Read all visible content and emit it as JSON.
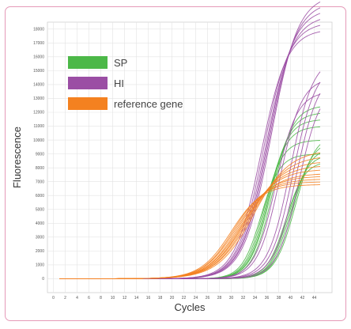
{
  "chart_data": {
    "type": "line",
    "xlabel": "Cycles",
    "ylabel": "Fluorescence",
    "xlim": [
      -1,
      47
    ],
    "ylim": [
      -1000,
      18500
    ],
    "x_ticks": [
      0,
      2,
      4,
      6,
      8,
      10,
      12,
      14,
      16,
      18,
      20,
      22,
      24,
      26,
      28,
      30,
      32,
      34,
      36,
      38,
      40,
      42,
      44
    ],
    "y_ticks": [
      0,
      1000,
      2000,
      3000,
      4000,
      5000,
      6000,
      7000,
      8000,
      9000,
      10000,
      11000,
      12000,
      13000,
      14000,
      15000,
      16000,
      17000,
      18000
    ],
    "grid": true,
    "legend_position": "top-left",
    "series": [
      {
        "name": "SP",
        "color": "#4cb848",
        "x_start": 1,
        "x_end": 45,
        "curves": [
          {
            "plateau": 9000,
            "midpoint": 35.0,
            "slope": 1.6
          },
          {
            "plateau": 10000,
            "midpoint": 35.5,
            "slope": 1.6
          },
          {
            "plateau": 11000,
            "midpoint": 36.0,
            "slope": 1.65
          },
          {
            "plateau": 11500,
            "midpoint": 36.3,
            "slope": 1.65
          },
          {
            "plateau": 12000,
            "midpoint": 36.6,
            "slope": 1.7
          },
          {
            "plateau": 12500,
            "midpoint": 37.0,
            "slope": 1.7
          },
          {
            "plateau": 8500,
            "midpoint": 39.2,
            "slope": 1.6
          },
          {
            "plateau": 9000,
            "midpoint": 39.6,
            "slope": 1.6
          },
          {
            "plateau": 9500,
            "midpoint": 40.0,
            "slope": 1.65
          },
          {
            "plateau": 10000,
            "midpoint": 40.4,
            "slope": 1.65
          },
          {
            "plateau": 10500,
            "midpoint": 40.8,
            "slope": 1.7
          }
        ]
      },
      {
        "name": "HI",
        "color": "#9b4ea4",
        "x_start": 1,
        "x_end": 45,
        "curves": [
          {
            "plateau": 18000,
            "midpoint": 35.0,
            "slope": 2.2
          },
          {
            "plateau": 18500,
            "midpoint": 35.4,
            "slope": 2.2
          },
          {
            "plateau": 19000,
            "midpoint": 35.8,
            "slope": 2.25
          },
          {
            "plateau": 19500,
            "midpoint": 36.1,
            "slope": 2.25
          },
          {
            "plateau": 20000,
            "midpoint": 36.4,
            "slope": 2.3
          },
          {
            "plateau": 20500,
            "midpoint": 36.7,
            "slope": 2.3
          },
          {
            "plateau": 13500,
            "midpoint": 37.5,
            "slope": 1.8
          },
          {
            "plateau": 14500,
            "midpoint": 38.2,
            "slope": 1.85
          },
          {
            "plateau": 16000,
            "midpoint": 40.0,
            "slope": 1.9
          },
          {
            "plateau": 15500,
            "midpoint": 40.5,
            "slope": 1.9
          },
          {
            "plateau": 15000,
            "midpoint": 41.0,
            "slope": 1.9
          },
          {
            "plateau": 14000,
            "midpoint": 41.4,
            "slope": 1.85
          }
        ]
      },
      {
        "name": "reference gene",
        "color": "#f48120",
        "x_start": 1,
        "x_end": 45,
        "curves": [
          {
            "plateau": 6800,
            "midpoint": 30.0,
            "slope": 2.6
          },
          {
            "plateau": 7000,
            "midpoint": 30.4,
            "slope": 2.6
          },
          {
            "plateau": 7200,
            "midpoint": 30.8,
            "slope": 2.7
          },
          {
            "plateau": 7400,
            "midpoint": 31.2,
            "slope": 2.7
          },
          {
            "plateau": 7600,
            "midpoint": 31.6,
            "slope": 2.8
          },
          {
            "plateau": 7900,
            "midpoint": 32.0,
            "slope": 2.8
          },
          {
            "plateau": 8200,
            "midpoint": 32.4,
            "slope": 2.9
          },
          {
            "plateau": 8500,
            "midpoint": 32.8,
            "slope": 2.9
          },
          {
            "plateau": 8900,
            "midpoint": 33.3,
            "slope": 3.0
          },
          {
            "plateau": 9300,
            "midpoint": 33.8,
            "slope": 3.0
          }
        ]
      }
    ]
  }
}
